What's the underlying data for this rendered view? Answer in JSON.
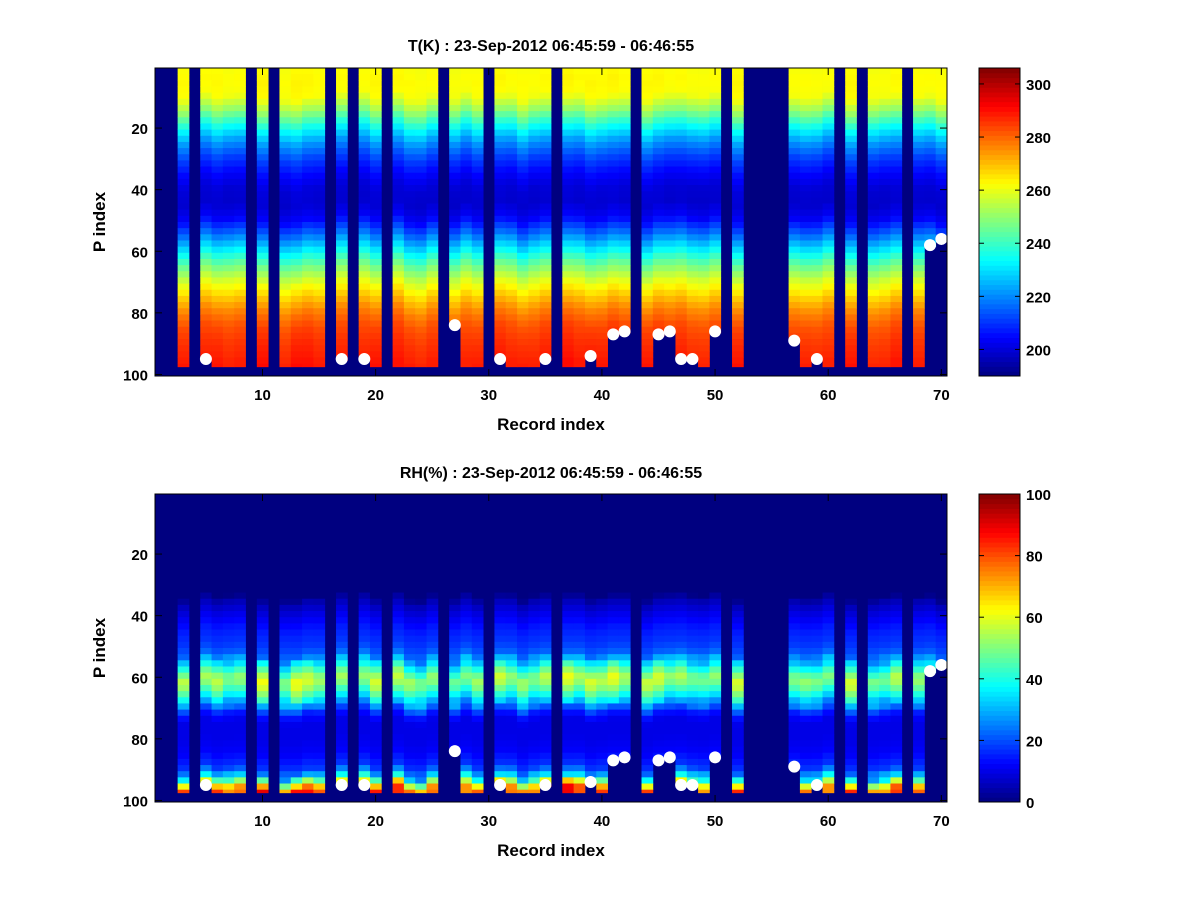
{
  "figure": {
    "background": "#ffffff"
  },
  "chart_data": [
    {
      "type": "heatmap",
      "title": "T(K) : 23-Sep-2012 06:45:59 - 06:46:55",
      "xlabel": "Record index",
      "ylabel": "P index",
      "xlim": [
        0.5,
        70.5
      ],
      "ylim": [
        0.5,
        100.5
      ],
      "y_reversed": true,
      "xticks": [
        10,
        20,
        30,
        40,
        50,
        60,
        70
      ],
      "yticks": [
        20,
        40,
        60,
        80,
        100
      ],
      "colorbar": {
        "range": [
          190,
          306
        ],
        "ticks": [
          200,
          220,
          240,
          260,
          280,
          300
        ],
        "colormap": "jet"
      },
      "field_model": {
        "description": "temperature profile by pressure index",
        "profile": [
          [
            1,
            262
          ],
          [
            5,
            263
          ],
          [
            10,
            262
          ],
          [
            15,
            250
          ],
          [
            20,
            235
          ],
          [
            25,
            222
          ],
          [
            30,
            212
          ],
          [
            35,
            205
          ],
          [
            40,
            200
          ],
          [
            45,
            199
          ],
          [
            50,
            204
          ],
          [
            55,
            217
          ],
          [
            60,
            232
          ],
          [
            65,
            246
          ],
          [
            70,
            258
          ],
          [
            75,
            268
          ],
          [
            80,
            277
          ],
          [
            85,
            283
          ],
          [
            90,
            286
          ],
          [
            95,
            288
          ],
          [
            97,
            289
          ]
        ],
        "fill_value": 190
      },
      "valid_columns": [
        3,
        5,
        6,
        7,
        8,
        10,
        12,
        13,
        14,
        15,
        17,
        19,
        20,
        22,
        23,
        24,
        25,
        27,
        28,
        29,
        31,
        32,
        33,
        34,
        35,
        37,
        38,
        39,
        40,
        41,
        42,
        44,
        45,
        46,
        47,
        48,
        49,
        50,
        52,
        57,
        58,
        59,
        60,
        62,
        64,
        65,
        66,
        68,
        69,
        70
      ],
      "surface_points": [
        {
          "record": 5,
          "p_index": 95
        },
        {
          "record": 17,
          "p_index": 95
        },
        {
          "record": 19,
          "p_index": 95
        },
        {
          "record": 27,
          "p_index": 84
        },
        {
          "record": 31,
          "p_index": 95
        },
        {
          "record": 35,
          "p_index": 95
        },
        {
          "record": 39,
          "p_index": 94
        },
        {
          "record": 41,
          "p_index": 87
        },
        {
          "record": 42,
          "p_index": 86
        },
        {
          "record": 45,
          "p_index": 87
        },
        {
          "record": 46,
          "p_index": 86
        },
        {
          "record": 47,
          "p_index": 95
        },
        {
          "record": 48,
          "p_index": 95
        },
        {
          "record": 50,
          "p_index": 86
        },
        {
          "record": 57,
          "p_index": 89
        },
        {
          "record": 59,
          "p_index": 95
        },
        {
          "record": 69,
          "p_index": 58
        },
        {
          "record": 70,
          "p_index": 56
        }
      ]
    },
    {
      "type": "heatmap",
      "title": "RH(%) : 23-Sep-2012 06:45:59 - 06:46:55",
      "xlabel": "Record index",
      "ylabel": "P index",
      "xlim": [
        0.5,
        70.5
      ],
      "ylim": [
        0.5,
        100.5
      ],
      "y_reversed": true,
      "xticks": [
        10,
        20,
        30,
        40,
        50,
        60,
        70
      ],
      "yticks": [
        20,
        40,
        60,
        80,
        100
      ],
      "colorbar": {
        "range": [
          0,
          100
        ],
        "ticks": [
          0,
          20,
          40,
          60,
          80,
          100
        ],
        "colormap": "jet"
      },
      "field_model": {
        "description": "relative humidity profile by pressure index",
        "profile": [
          [
            1,
            0
          ],
          [
            34,
            0
          ],
          [
            36,
            5
          ],
          [
            40,
            10
          ],
          [
            45,
            15
          ],
          [
            50,
            18
          ],
          [
            53,
            22
          ],
          [
            56,
            35
          ],
          [
            59,
            48
          ],
          [
            61,
            55
          ],
          [
            63,
            52
          ],
          [
            66,
            42
          ],
          [
            69,
            30
          ],
          [
            72,
            15
          ],
          [
            75,
            10
          ],
          [
            80,
            10
          ],
          [
            85,
            12
          ],
          [
            90,
            18
          ],
          [
            93,
            35
          ],
          [
            95,
            60
          ],
          [
            97,
            80
          ]
        ],
        "fill_value": 0
      },
      "valid_columns": [
        3,
        5,
        6,
        7,
        8,
        10,
        12,
        13,
        14,
        15,
        17,
        19,
        20,
        22,
        23,
        24,
        25,
        27,
        28,
        29,
        31,
        32,
        33,
        34,
        35,
        37,
        38,
        39,
        40,
        41,
        42,
        44,
        45,
        46,
        47,
        48,
        49,
        50,
        52,
        57,
        58,
        59,
        60,
        62,
        64,
        65,
        66,
        68,
        69,
        70
      ],
      "surface_points": [
        {
          "record": 5,
          "p_index": 95
        },
        {
          "record": 17,
          "p_index": 95
        },
        {
          "record": 19,
          "p_index": 95
        },
        {
          "record": 27,
          "p_index": 84
        },
        {
          "record": 31,
          "p_index": 95
        },
        {
          "record": 35,
          "p_index": 95
        },
        {
          "record": 39,
          "p_index": 94
        },
        {
          "record": 41,
          "p_index": 87
        },
        {
          "record": 42,
          "p_index": 86
        },
        {
          "record": 45,
          "p_index": 87
        },
        {
          "record": 46,
          "p_index": 86
        },
        {
          "record": 47,
          "p_index": 95
        },
        {
          "record": 48,
          "p_index": 95
        },
        {
          "record": 50,
          "p_index": 86
        },
        {
          "record": 57,
          "p_index": 89
        },
        {
          "record": 59,
          "p_index": 95
        },
        {
          "record": 69,
          "p_index": 58
        },
        {
          "record": 70,
          "p_index": 56
        }
      ]
    }
  ]
}
